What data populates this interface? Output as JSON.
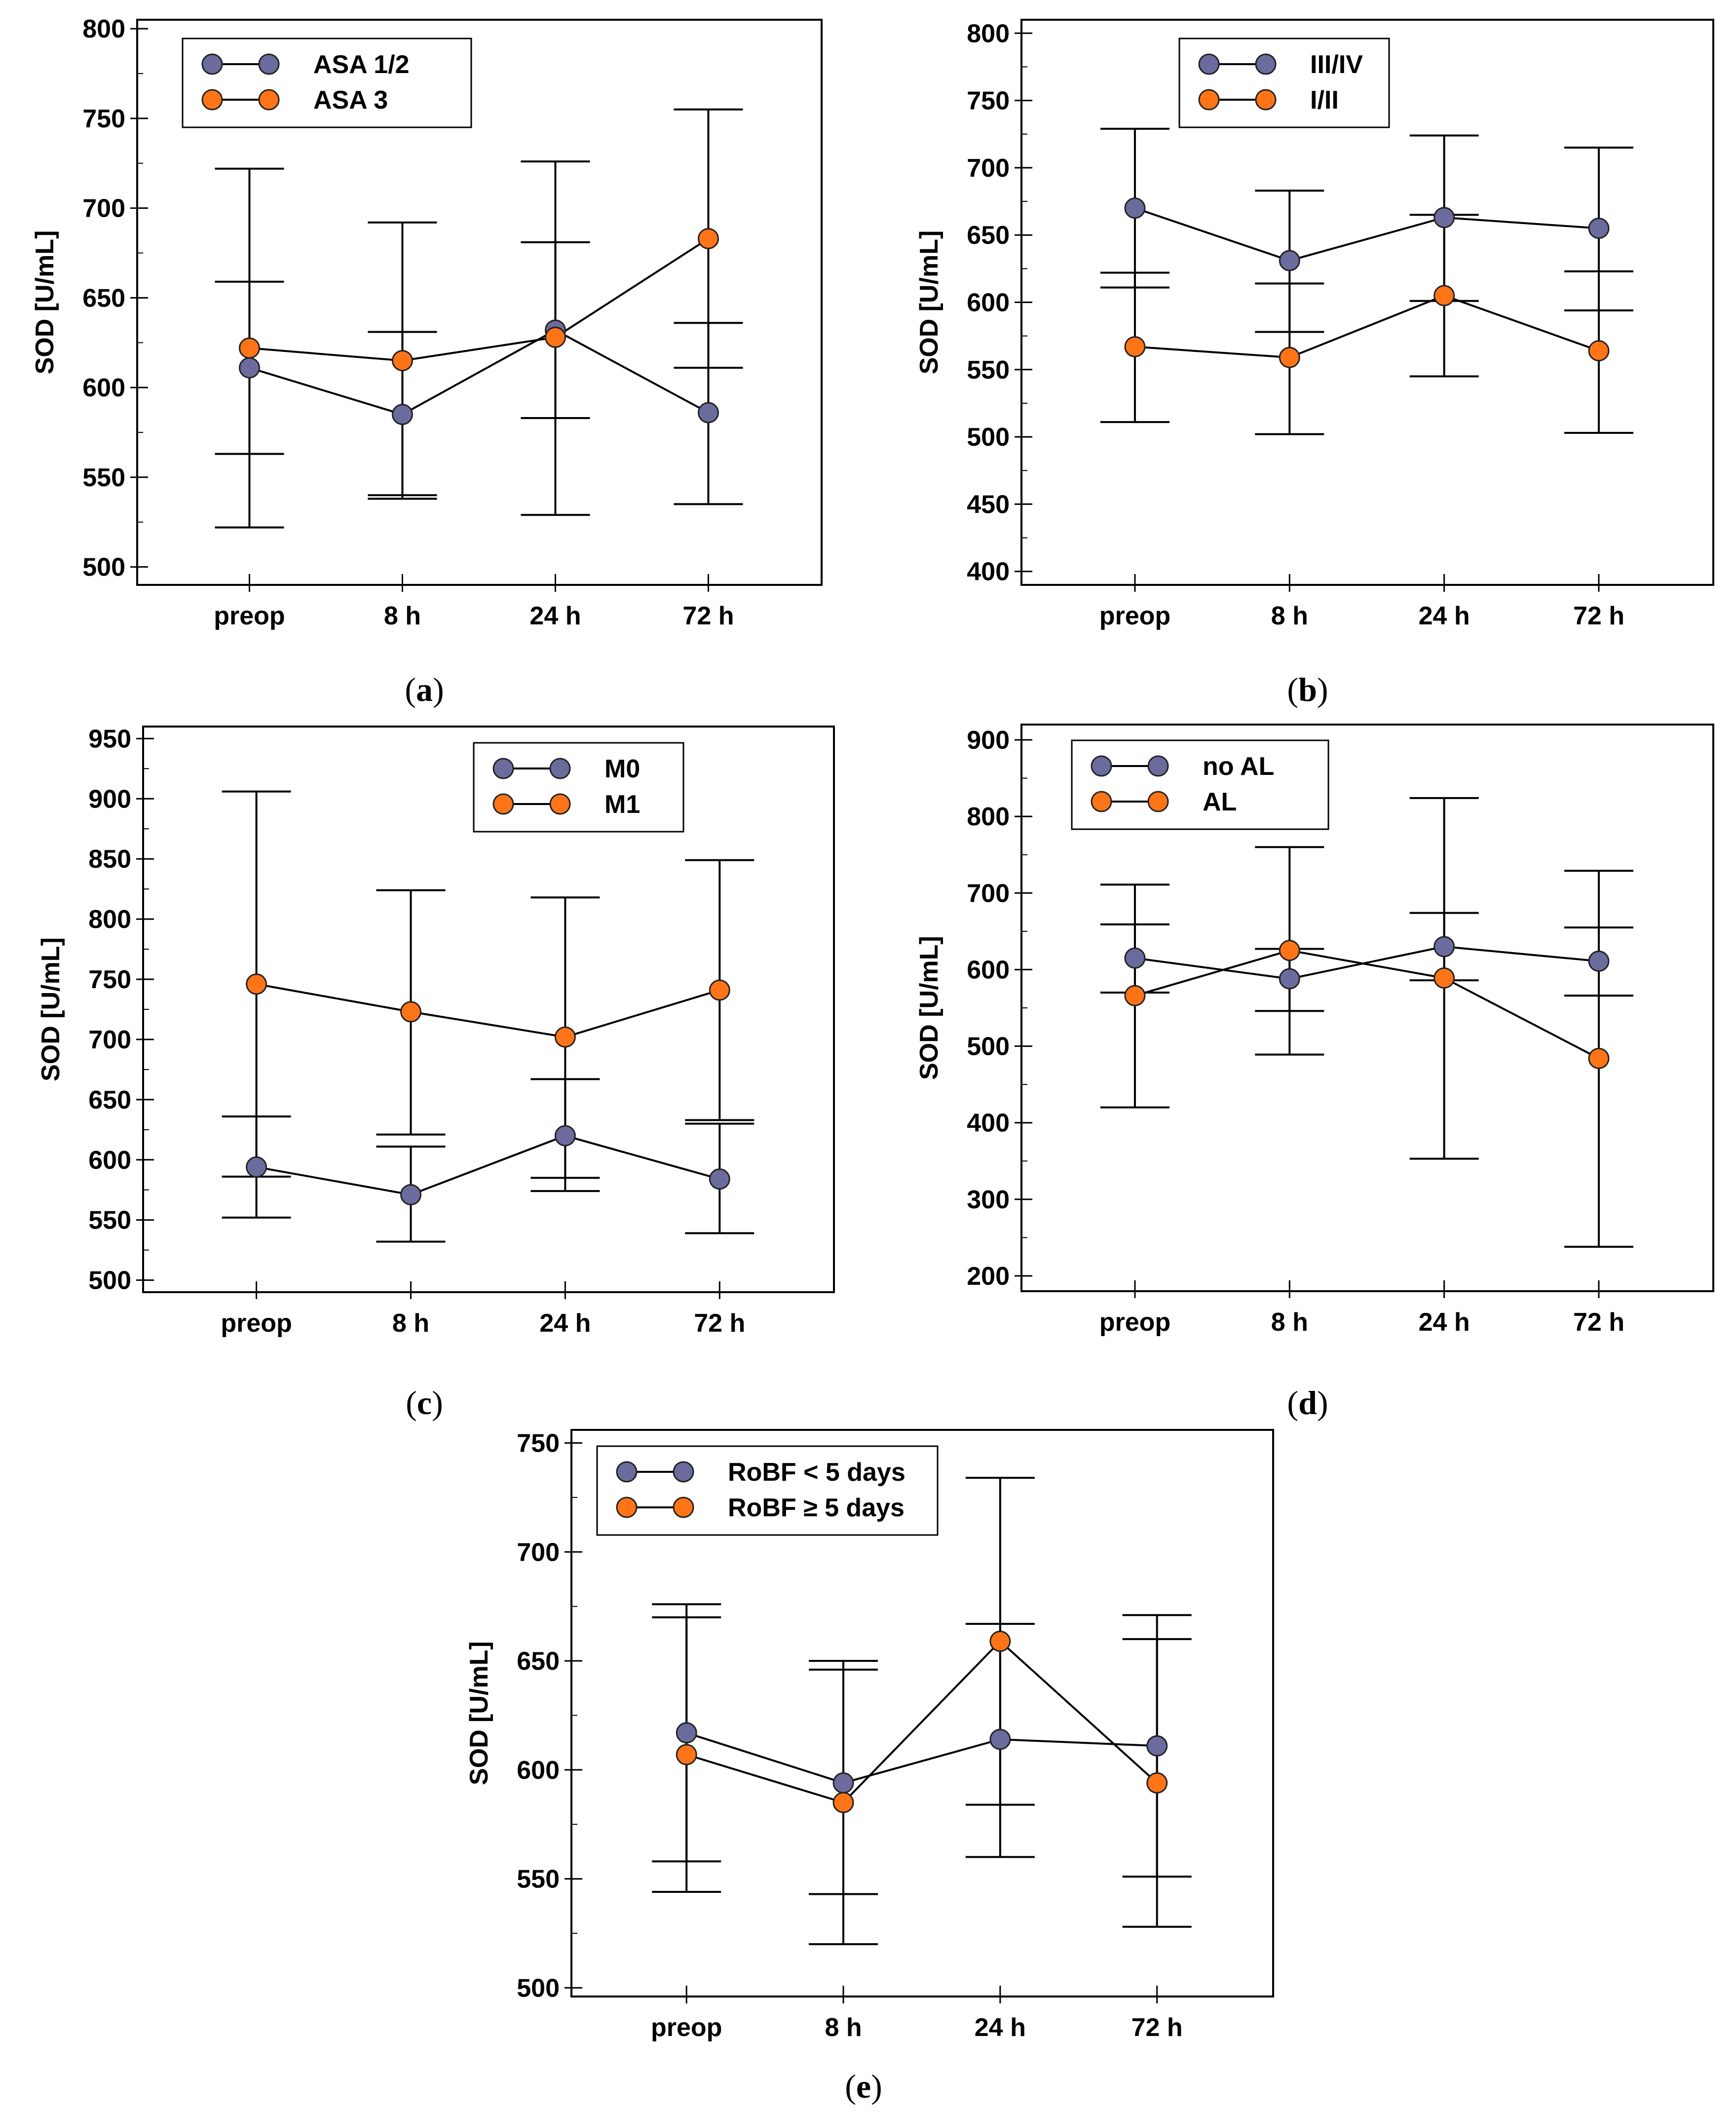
{
  "figure": {
    "panel_count": 5,
    "colors": {
      "series1": "#6b6b9e",
      "series2": "#ff7417",
      "axis": "#000000"
    }
  },
  "chart_data": [
    {
      "type": "line",
      "panel": "a",
      "caption_letter": "a",
      "title": "",
      "xlabel": "",
      "ylabel": "SOD [U/mL]",
      "categories": [
        "preop",
        "8 h",
        "24 h",
        "72 h"
      ],
      "ylim": [
        490,
        805
      ],
      "yticks": [
        500,
        550,
        600,
        650,
        700,
        750,
        800
      ],
      "legend_position": "top-left",
      "series": [
        {
          "name": "ASA 1/2",
          "values": [
            611,
            585,
            632,
            586
          ],
          "err_low": [
            563,
            540,
            583,
            535
          ],
          "err_high": [
            659,
            631,
            681,
            636
          ]
        },
        {
          "name": "ASA 3",
          "values": [
            622,
            615,
            628,
            683
          ],
          "err_low": [
            522,
            538,
            529,
            611
          ],
          "err_high": [
            722,
            692,
            726,
            755
          ]
        }
      ]
    },
    {
      "type": "line",
      "panel": "b",
      "caption_letter": "b",
      "title": "",
      "xlabel": "",
      "ylabel": "SOD [U/mL]",
      "categories": [
        "preop",
        "8 h",
        "24 h",
        "72 h"
      ],
      "ylim": [
        390,
        810
      ],
      "yticks": [
        400,
        450,
        500,
        550,
        600,
        650,
        700,
        750,
        800
      ],
      "legend_position": "top-center",
      "series": [
        {
          "name": "III/IV",
          "values": [
            670,
            631,
            663,
            655
          ],
          "err_low": [
            611,
            578,
            601,
            594
          ],
          "err_high": [
            729,
            683,
            724,
            715
          ]
        },
        {
          "name": "I/II",
          "values": [
            567,
            559,
            605,
            564
          ],
          "err_low": [
            511,
            502,
            545,
            503
          ],
          "err_high": [
            622,
            614,
            665,
            623
          ]
        }
      ]
    },
    {
      "type": "line",
      "panel": "c",
      "caption_letter": "c",
      "title": "",
      "xlabel": "",
      "ylabel": "SOD [U/mL]",
      "categories": [
        "preop",
        "8 h",
        "24 h",
        "72 h"
      ],
      "ylim": [
        490,
        960
      ],
      "yticks": [
        500,
        550,
        600,
        650,
        700,
        750,
        800,
        850,
        900,
        950
      ],
      "legend_position": "top-center",
      "series": [
        {
          "name": "M0",
          "values": [
            594,
            571,
            620,
            584
          ],
          "err_low": [
            552,
            532,
            574,
            539
          ],
          "err_high": [
            636,
            611,
            667,
            630
          ]
        },
        {
          "name": "M1",
          "values": [
            746,
            723,
            702,
            741
          ],
          "err_low": [
            586,
            621,
            585,
            633
          ],
          "err_high": [
            906,
            824,
            818,
            849
          ]
        }
      ]
    },
    {
      "type": "line",
      "panel": "d",
      "caption_letter": "d",
      "title": "",
      "xlabel": "",
      "ylabel": "SOD [U/mL]",
      "categories": [
        "preop",
        "8 h",
        "24 h",
        "72 h"
      ],
      "ylim": [
        180,
        920
      ],
      "yticks": [
        200,
        300,
        400,
        500,
        600,
        700,
        800,
        900
      ],
      "legend_position": "top-left",
      "series": [
        {
          "name": "no AL",
          "values": [
            615,
            588,
            630,
            611
          ],
          "err_low": [
            570,
            546,
            586,
            566
          ],
          "err_high": [
            659,
            627,
            674,
            655
          ]
        },
        {
          "name": "AL",
          "values": [
            566,
            625,
            589,
            484
          ],
          "err_low": [
            420,
            489,
            353,
            238
          ],
          "err_high": [
            711,
            760,
            824,
            729
          ]
        }
      ]
    },
    {
      "type": "line",
      "panel": "e",
      "caption_letter": "e",
      "title": "",
      "xlabel": "",
      "ylabel": "SOD [U/mL]",
      "categories": [
        "preop",
        "8 h",
        "24 h",
        "72 h"
      ],
      "ylim": [
        496,
        756
      ],
      "yticks": [
        500,
        550,
        600,
        650,
        700,
        750
      ],
      "legend_position": "top-left",
      "series": [
        {
          "name": "RoBF < 5 days",
          "values": [
            617,
            594,
            614,
            611
          ],
          "err_low": [
            558,
            543,
            560,
            551
          ],
          "err_high": [
            676,
            646,
            667,
            671
          ]
        },
        {
          "name": "RoBF ≥ 5 days",
          "values": [
            607,
            585,
            659,
            594
          ],
          "err_low": [
            544,
            520,
            584,
            528
          ],
          "err_high": [
            670,
            650,
            734,
            660
          ]
        }
      ]
    }
  ]
}
